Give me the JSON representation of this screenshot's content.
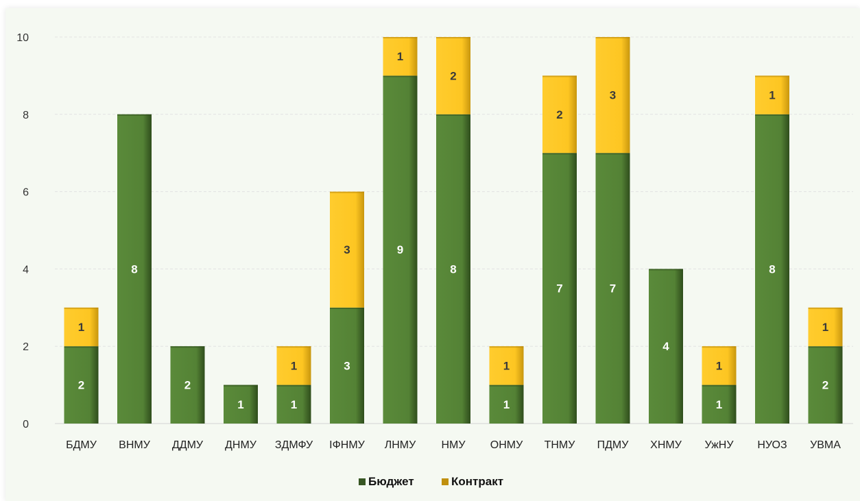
{
  "chart_data": {
    "type": "bar",
    "stacked": true,
    "categories": [
      "БДМУ",
      "ВНМУ",
      "ДДМУ",
      "ДНМУ",
      "ЗДМФУ",
      "ІФНМУ",
      "ЛНМУ",
      "НМУ",
      "ОНМУ",
      "ТНМУ",
      "ПДМУ",
      "ХНМУ",
      "УжНУ",
      "НУОЗ",
      "УВМА"
    ],
    "series": [
      {
        "name": "Бюджет",
        "color": "#548235",
        "values": [
          2,
          8,
          2,
          1,
          1,
          3,
          9,
          8,
          1,
          7,
          7,
          4,
          1,
          8,
          2
        ]
      },
      {
        "name": "Контракт",
        "color": "#ffc825",
        "values": [
          1,
          0,
          0,
          0,
          1,
          3,
          1,
          2,
          1,
          2,
          3,
          0,
          1,
          1,
          1
        ]
      }
    ],
    "yticks": [
      0,
      2,
      4,
      6,
      8,
      10
    ],
    "ylim": [
      0,
      10
    ],
    "grid": true,
    "legend": "bottom"
  }
}
